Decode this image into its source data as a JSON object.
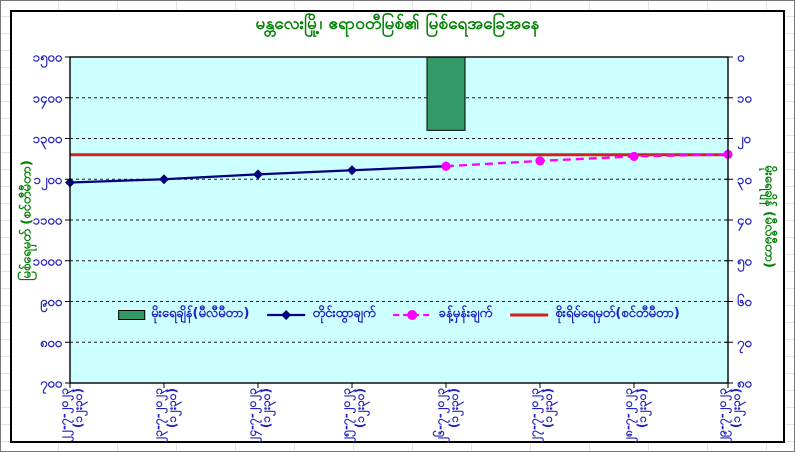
{
  "chart_data": {
    "type": "line+bar",
    "title": "မန္တလေးမြို့၊ ဧရာဝတီမြစ်၏ မြစ်ရေအခြေအနေ",
    "categories": [
      "၂၂-၇-၂၀၂၃",
      "၂၃-၇-၂၀၂၃",
      "၂၄-၇-၂၀၂၃",
      "၂၅-၇-၂၀၂၃",
      "၂၆-၇-၂၀၂၃",
      "၂၇-၇-၂၀၂၃",
      "၂၈-၇-၂၀၂၃",
      "၂၉-၇-၂၀၂၃"
    ],
    "category_time": "(၁၂း၃၀)",
    "left_axis": {
      "title": "မြစ်ရေမှတ် (စင်တီမီတာ)",
      "min": 700,
      "max": 1500,
      "step": 100,
      "tick_labels": [
        "၁၅၀၀",
        "၁၄၀၀",
        "၁၃၀၀",
        "၁၂၀၀",
        "၁၁၀၀",
        "၁၀၀၀",
        "၉၀၀",
        "၈၀၀",
        "၇၀၀"
      ]
    },
    "right_axis": {
      "title": "မိုးရေချိန် (မီလီမီတာ)",
      "min": 0,
      "max": 80,
      "step": 10,
      "inverted": true,
      "tick_labels": [
        "၀",
        "၁၀",
        "၂၀",
        "၃၀",
        "၄၀",
        "၅၀",
        "၆၀",
        "၇၀",
        "၈၀"
      ]
    },
    "series": [
      {
        "name": "မိုးရေချိန်(မီလီမီတာ)",
        "type": "bar",
        "axis": "right",
        "color": "#339966",
        "values": [
          null,
          null,
          null,
          null,
          18,
          null,
          null,
          null
        ]
      },
      {
        "name": "တိုင်းထွာချက်",
        "type": "line",
        "marker": "diamond",
        "axis": "left",
        "color": "#000080",
        "values": [
          1192,
          1200,
          1212,
          1222,
          1232,
          null,
          null,
          null
        ]
      },
      {
        "name": "ခန့်မှန်းချက်",
        "type": "line",
        "dashed": true,
        "marker": "circle",
        "axis": "left",
        "color": "#FF00FF",
        "values": [
          null,
          null,
          null,
          null,
          1232,
          1245,
          1256,
          1261
        ]
      },
      {
        "name": "စိုးရိမ်ရေမှတ်(စင်တီမီတာ)",
        "type": "hline",
        "axis": "left",
        "color": "#D62020",
        "value": 1260
      }
    ],
    "grid": true,
    "legend_position": "inside-bottom-center",
    "colors": {
      "plot_bg": "#CCFFFF",
      "title_text": "#008000",
      "axis_title_text": "#008000",
      "tick_text": "#2222BE",
      "gridline": "#1a1a1a"
    }
  }
}
